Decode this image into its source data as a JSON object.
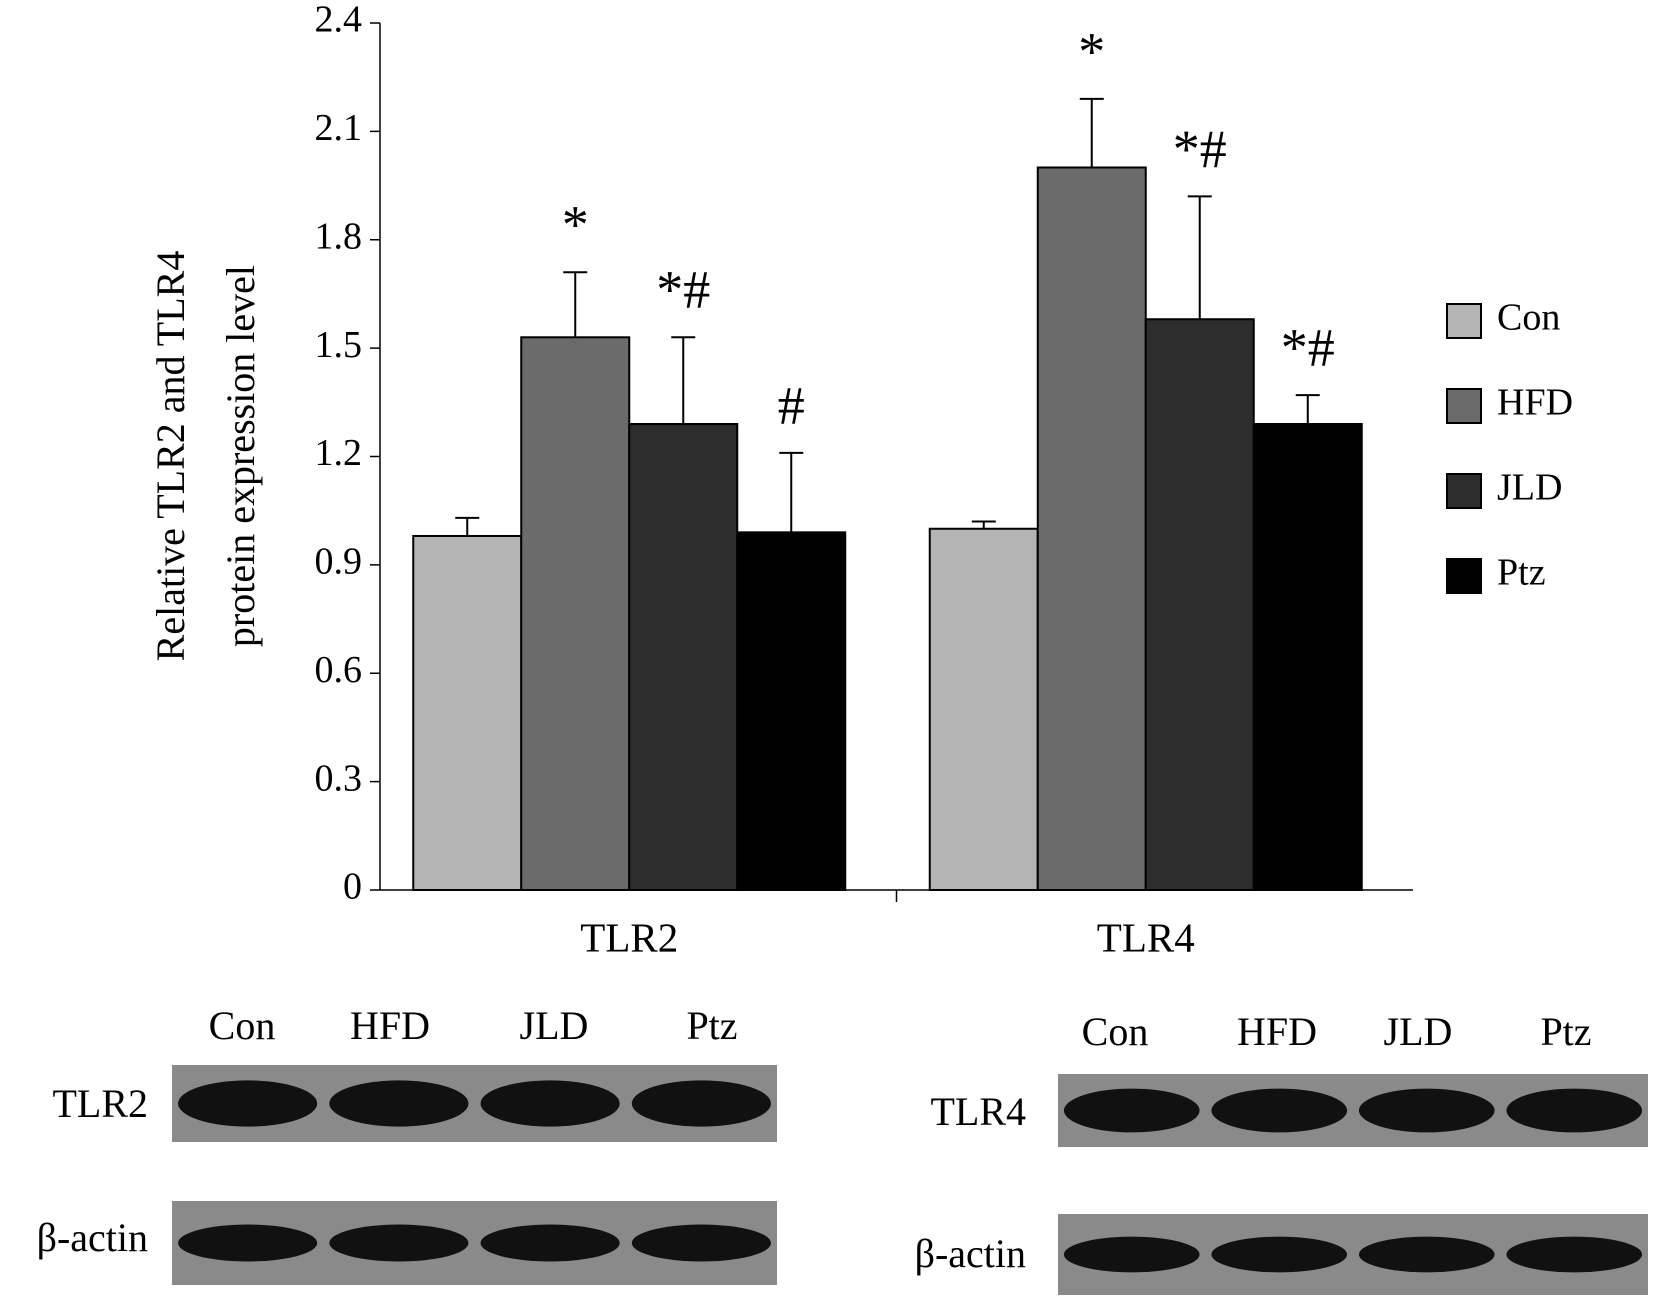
{
  "chart_data": {
    "type": "bar",
    "ylabel": [
      "Relative TLR2 and TLR4",
      "protein expression level"
    ],
    "categories": [
      "TLR2",
      "TLR4"
    ],
    "series": [
      {
        "name": "Con",
        "color": "#b4b4b4",
        "values": [
          0.98,
          1.0
        ],
        "errors": [
          0.05,
          0.02
        ],
        "annotations": [
          null,
          null
        ]
      },
      {
        "name": "HFD",
        "color": "#6b6b6b",
        "values": [
          1.53,
          2.0
        ],
        "errors": [
          0.18,
          0.19
        ],
        "annotations": [
          "*",
          "*"
        ]
      },
      {
        "name": "JLD",
        "color": "#2d2d2d",
        "values": [
          1.29,
          1.58
        ],
        "errors": [
          0.24,
          0.34
        ],
        "annotations": [
          "*#",
          "*#"
        ]
      },
      {
        "name": "Ptz",
        "color": "#000000",
        "values": [
          0.99,
          1.29
        ],
        "errors": [
          0.22,
          0.08
        ],
        "annotations": [
          "#",
          "*#"
        ]
      }
    ],
    "ylim": [
      0,
      2.4
    ],
    "yticks": [
      0,
      0.3,
      0.6,
      0.9,
      1.2,
      1.5,
      1.8,
      2.1,
      2.4
    ],
    "legend": "right"
  },
  "blots": [
    {
      "lanes": [
        "Con",
        "HFD",
        "JLD",
        "Ptz"
      ],
      "rows": [
        "TLR2",
        "β-actin"
      ]
    },
    {
      "lanes": [
        "Con",
        "HFD",
        "JLD",
        "Ptz"
      ],
      "rows": [
        "TLR4",
        "β-actin"
      ]
    }
  ]
}
